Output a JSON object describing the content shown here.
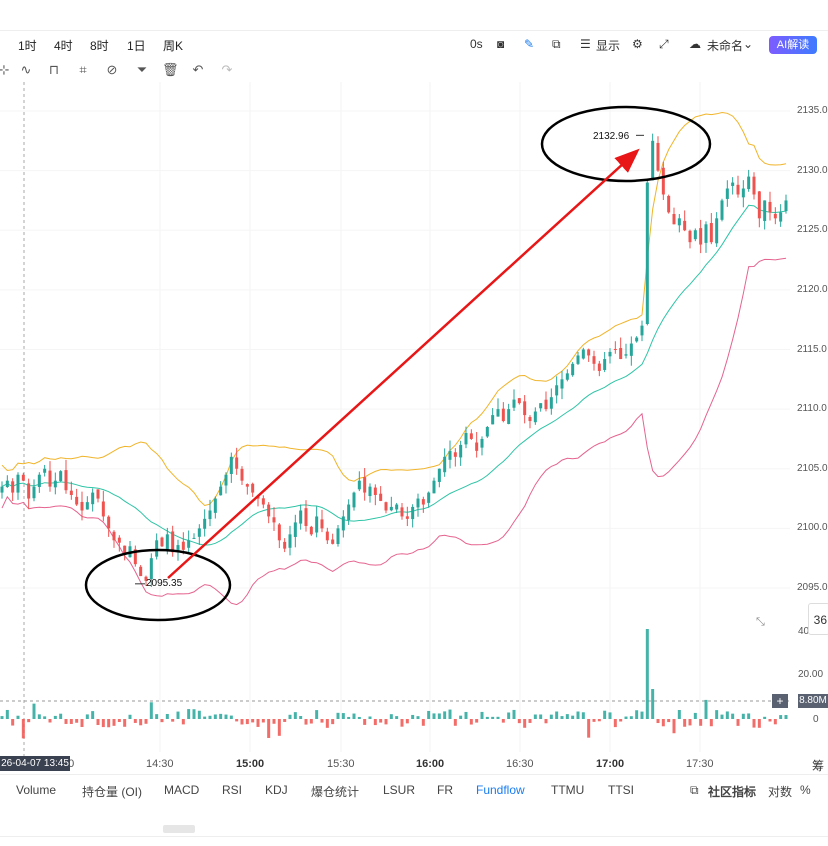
{
  "toolbar": {
    "timeframes": [
      "1时",
      "4时",
      "8时",
      "1日",
      "周K"
    ],
    "zero_s": "0s",
    "display_label": "显示",
    "untitled_label": "未命名",
    "ai_label": "AI解读"
  },
  "tabs": [
    "Volume",
    "持仓量 (OI)",
    "MACD",
    "RSI",
    "KDJ",
    "爆仓统计",
    "LSUR",
    "FR",
    "Fundflow",
    "TTMU",
    "TTSI"
  ],
  "active_tab": "Fundflow",
  "tabs_right": {
    "community": "社区指标",
    "log": "对数",
    "pct": "%"
  },
  "crosshair_label": "26-04-07 13:45",
  "annotations": {
    "high_label": "2132.96",
    "low_label": "2095.35"
  },
  "volume_panel": {
    "current_tag": "8.80M",
    "top_label": "20.00",
    "zero_label": "0",
    "cut_label": "40"
  },
  "side_box_text": "36",
  "cut_right_char": "筹",
  "chart_data": {
    "type": "candlestick",
    "x_ticks": [
      "14:30",
      "15:00",
      "15:30",
      "16:00",
      "16:30",
      "17:00",
      "17:30"
    ],
    "x_left_cut_tick": "00",
    "y_ticks": [
      2135.0,
      2130.0,
      2125.0,
      2120.0,
      2115.0,
      2110.0,
      2105.0,
      2100.0,
      2095.0
    ],
    "y_tick_labels": [
      "2135.0",
      "2130.0",
      "2125.0",
      "2120.0",
      "2115.0",
      "2110.0",
      "2105.0",
      "2100.0",
      "2095.0"
    ],
    "ylim": [
      2094.0,
      2136.5
    ],
    "overlays": [
      "bollinger upper",
      "bollinger middle",
      "bollinger lower"
    ],
    "colors": {
      "up": "#26a69a",
      "down": "#ef5350",
      "upper": "#f0b429",
      "middle": "#2ec4a6",
      "lower": "#e5638f",
      "arrow": "#e81616"
    },
    "high": 2132.96,
    "low": 2095.35,
    "close_path": [
      2103.5,
      2104.0,
      2103.0,
      2104.5,
      2104.0,
      2102.5,
      2103.5,
      2104.5,
      2105.0,
      2103.5,
      2104.0,
      2104.8,
      2103.2,
      2102.8,
      2102.0,
      2101.5,
      2102.2,
      2103.0,
      2102.5,
      2101.0,
      2100.0,
      2099.0,
      2098.8,
      2097.8,
      2098.5,
      2097.0,
      2096.0,
      2095.6,
      2097.5,
      2099.0,
      2098.5,
      2099.5,
      2098.0,
      2098.6,
      2098.2,
      2099.0,
      2099.2,
      2100.0,
      2100.8,
      2101.5,
      2102.5,
      2103.5,
      2104.5,
      2106.0,
      2105.0,
      2104.0,
      2103.5,
      2103.0,
      2102.5,
      2102.0,
      2101.0,
      2100.5,
      2099.0,
      2098.3,
      2099.5,
      2100.5,
      2101.5,
      2100.2,
      2099.5,
      2101.0,
      2100.0,
      2099.0,
      2098.7,
      2100.0,
      2101.0,
      2102.0,
      2103.0,
      2104.0,
      2103.0,
      2103.5,
      2102.8,
      2102.3,
      2101.5,
      2101.8,
      2102.0,
      2101.0,
      2100.8,
      2101.8,
      2102.5,
      2102.0,
      2103.0,
      2104.0,
      2105.0,
      2106.0,
      2106.5,
      2106.0,
      2107.0,
      2108.0,
      2107.5,
      2106.5,
      2107.5,
      2108.5,
      2109.5,
      2110.0,
      2109.0,
      2110.0,
      2110.8,
      2110.5,
      2109.5,
      2109.0,
      2109.8,
      2110.5,
      2110.0,
      2111.0,
      2112.0,
      2112.5,
      2113.0,
      2113.8,
      2114.5,
      2115.0,
      2114.5,
      2113.8,
      2113.2,
      2114.2,
      2114.8,
      2115.0,
      2114.2,
      2114.6,
      2115.5,
      2116.0,
      2117.0,
      2129.0,
      2132.5,
      2130.0,
      2128.0,
      2126.5,
      2125.5,
      2126.0,
      2125.0,
      2124.0,
      2125.0,
      2123.8,
      2125.5,
      2124.0,
      2126.0,
      2127.5,
      2128.5,
      2129.0,
      2128.0,
      2128.5,
      2129.5,
      2128.0,
      2126.0,
      2127.5,
      2126.5,
      2126.0,
      2126.5,
      2127.5
    ]
  }
}
